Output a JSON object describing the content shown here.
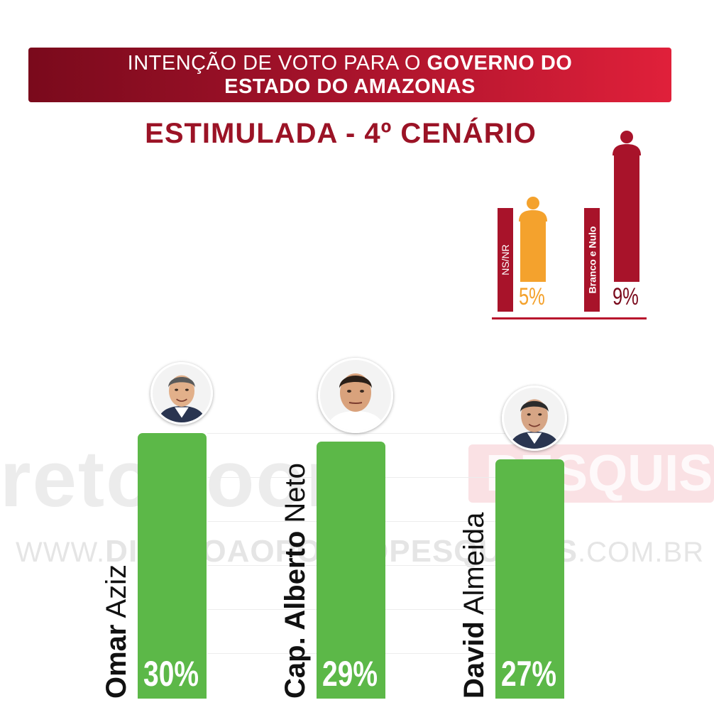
{
  "header": {
    "title_regular": "INTENÇÃO DE VOTO PARA O",
    "title_bold_1": "GOVERNO DO",
    "title_bold_2": "ESTADO DO AMAZONAS",
    "subtitle": "ESTIMULADA - 4º CENÁRIO"
  },
  "watermark": {
    "brand": "retodoor",
    "brand_suffix": "PESQUISA",
    "url_prefix": "WWW.",
    "url_main": "DIRETOAOPONTOPESQUISAS",
    "url_suffix": ".COM.BR"
  },
  "colors": {
    "candidate_bar": "#5cb848",
    "ns_nr": "#f4a22d",
    "branco_nulo": "#a8132a",
    "banner_dark": "#7a0a1c",
    "banner_light": "#e0203a",
    "subtitle": "#9b1326"
  },
  "chart_data": [
    {
      "type": "bar",
      "title": "ESTIMULADA - 4º CENÁRIO",
      "categories": [
        "Omar Aziz",
        "Cap. Alberto Neto",
        "David Almeida"
      ],
      "candidates": [
        {
          "first": "Omar",
          "last": "Aziz",
          "value": 30,
          "label": "30%",
          "avatar": "avatar-omar-aziz"
        },
        {
          "first": "Cap. Alberto",
          "last": "Neto",
          "value": 29,
          "label": "29%",
          "avatar": "avatar-alberto-neto"
        },
        {
          "first": "David",
          "last": "Almeida",
          "value": 27,
          "label": "27%",
          "avatar": "avatar-david-almeida"
        }
      ],
      "values": [
        30,
        29,
        27
      ],
      "unit": "%",
      "ylim": [
        0,
        30
      ]
    },
    {
      "type": "bar",
      "categories": [
        "NS/NR",
        "Branco e Nulo"
      ],
      "items": [
        {
          "label": "NS/NR",
          "value": 5,
          "value_label": "5%",
          "icon": "person-icon"
        },
        {
          "label": "Branco e Nulo",
          "value": 9,
          "value_label": "9%",
          "icon": "person-icon"
        }
      ],
      "values": [
        5,
        9
      ],
      "unit": "%",
      "ylim": [
        0,
        9
      ]
    }
  ]
}
